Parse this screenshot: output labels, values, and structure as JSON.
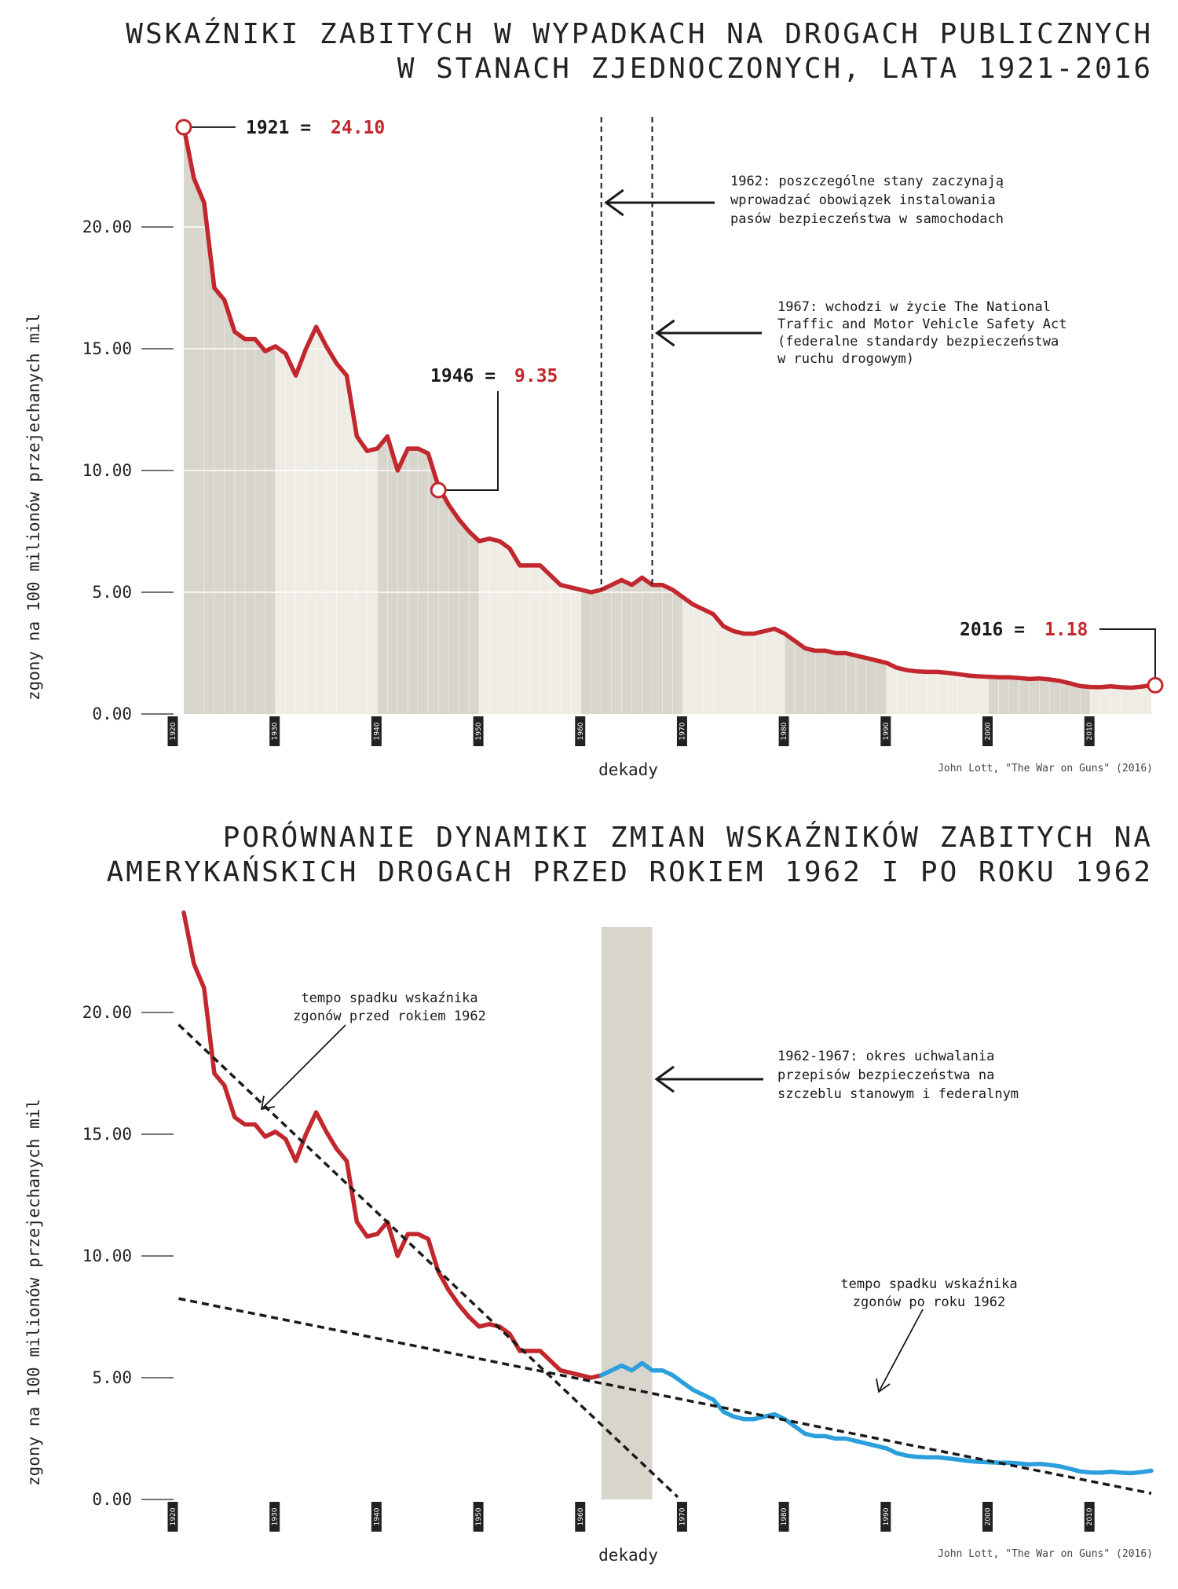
{
  "chart_data": [
    {
      "type": "area",
      "title_lines": [
        "WSKAŹNIKI ZABITYCH W WYPADKACH NA DROGACH PUBLICZNYCH",
        "W STANACH ZJEDNOCZONYCH, LATA 1921-2016"
      ],
      "ylabel": "zgony na 100 milionów przejechanych mil",
      "xlabel": "dekady",
      "source": "John Lott, \"The War on Guns\" (2016)",
      "ylim": [
        0,
        24.5
      ],
      "xlim": [
        1920,
        2016
      ],
      "yticks": [
        "0.00",
        "5.00",
        "10.00",
        "15.00",
        "20.00"
      ],
      "xticks": [
        "1920",
        "1930",
        "1940",
        "1950",
        "1960",
        "1970",
        "1980",
        "1990",
        "2000",
        "2010"
      ],
      "line_color": "#c1272d",
      "callouts": [
        {
          "year": "1921 =",
          "value": "24.10"
        },
        {
          "year": "1946 =",
          "value": "9.35"
        },
        {
          "year": "2016 =",
          "value": "1.18"
        }
      ],
      "annotations": {
        "a1962": [
          "1962: poszczególne stany zaczynają",
          "wprowadzać obowiązek instalowania",
          "pasów bezpieczeństwa w samochodach"
        ],
        "a1967": [
          "1967: wchodzi w życie The National",
          "Traffic and Motor Vehicle Safety Act",
          "(federalne standardy bezpieczeństwa",
          "w ruchu drogowym)"
        ]
      },
      "x": [
        1921,
        1922,
        1923,
        1924,
        1925,
        1926,
        1927,
        1928,
        1929,
        1930,
        1931,
        1932,
        1933,
        1934,
        1935,
        1936,
        1937,
        1938,
        1939,
        1940,
        1941,
        1942,
        1943,
        1944,
        1945,
        1946,
        1947,
        1948,
        1949,
        1950,
        1951,
        1952,
        1953,
        1954,
        1955,
        1956,
        1957,
        1958,
        1959,
        1960,
        1961,
        1962,
        1963,
        1964,
        1965,
        1966,
        1967,
        1968,
        1969,
        1970,
        1971,
        1972,
        1973,
        1974,
        1975,
        1976,
        1977,
        1978,
        1979,
        1980,
        1981,
        1982,
        1983,
        1984,
        1985,
        1986,
        1987,
        1988,
        1989,
        1990,
        1991,
        1992,
        1993,
        1994,
        1995,
        1996,
        1997,
        1998,
        1999,
        2000,
        2001,
        2002,
        2003,
        2004,
        2005,
        2006,
        2007,
        2008,
        2009,
        2010,
        2011,
        2012,
        2013,
        2014,
        2015,
        2016
      ],
      "values": [
        24.1,
        22.0,
        21.0,
        17.5,
        17.0,
        15.7,
        15.4,
        15.4,
        14.9,
        15.1,
        14.8,
        13.9,
        15.0,
        15.9,
        15.1,
        14.4,
        13.9,
        11.4,
        10.8,
        10.9,
        11.4,
        10.0,
        10.9,
        10.9,
        10.7,
        9.35,
        8.6,
        8.0,
        7.5,
        7.1,
        7.2,
        7.1,
        6.8,
        6.1,
        6.1,
        6.1,
        5.7,
        5.3,
        5.2,
        5.1,
        5.0,
        5.1,
        5.3,
        5.5,
        5.3,
        5.6,
        5.3,
        5.3,
        5.1,
        4.8,
        4.5,
        4.3,
        4.1,
        3.6,
        3.4,
        3.3,
        3.3,
        3.4,
        3.5,
        3.3,
        3.0,
        2.7,
        2.6,
        2.6,
        2.5,
        2.5,
        2.4,
        2.3,
        2.2,
        2.1,
        1.9,
        1.8,
        1.75,
        1.73,
        1.73,
        1.69,
        1.64,
        1.58,
        1.55,
        1.53,
        1.51,
        1.51,
        1.48,
        1.44,
        1.46,
        1.42,
        1.36,
        1.26,
        1.15,
        1.11,
        1.1,
        1.14,
        1.1,
        1.08,
        1.12,
        1.18
      ]
    },
    {
      "type": "line",
      "title_lines": [
        "PORÓWNANIE DYNAMIKI ZMIAN WSKAŹNIKÓW ZABITYCH NA",
        "AMERYKAŃSKICH DROGACH PRZED ROKIEM 1962 I PO ROKU 1962"
      ],
      "ylabel": "zgony na 100 milionów przejechanych mil",
      "xlabel": "dekady",
      "source": "John Lott, \"The War on Guns\" (2016)",
      "ylim": [
        0,
        24.5
      ],
      "xlim": [
        1920,
        2016
      ],
      "yticks": [
        "0.00",
        "5.00",
        "10.00",
        "15.00",
        "20.00"
      ],
      "xticks": [
        "1920",
        "1930",
        "1940",
        "1950",
        "1960",
        "1970",
        "1980",
        "1990",
        "2000",
        "2010"
      ],
      "series": [
        {
          "name": "",
          "color": "#c1272d",
          "range": [
            1921,
            1962
          ]
        },
        {
          "name": "",
          "color": "#2b9fdc",
          "range": [
            1962,
            2016
          ]
        }
      ],
      "highlight_period": [
        1962,
        1967
      ],
      "trendlines": [
        {
          "from": [
            1920.5,
            19.5
          ],
          "to": [
            1969.5,
            0.1
          ]
        },
        {
          "from": [
            1920.5,
            8.25
          ],
          "to": [
            2016,
            0.25
          ]
        }
      ],
      "annotations": {
        "before": [
          "tempo spadku wskaźnika",
          "zgonów przed rokiem 1962"
        ],
        "period": [
          "1962-1967: okres uchwalania",
          "przepisów bezpieczeństwa na",
          "szczeblu stanowym i federalnym"
        ],
        "after": [
          "tempo spadku wskaźnika",
          "zgonów po roku 1962"
        ]
      }
    }
  ]
}
